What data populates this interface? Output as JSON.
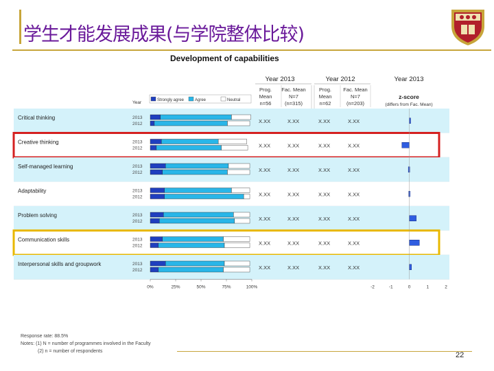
{
  "slide": {
    "title": "学生才能发展成果(与学院整体比较)",
    "page_number": "22",
    "colors": {
      "title": "#6a1a9a",
      "accent_rule": "#c7a53a",
      "red_box": "#d42020",
      "yellow_box": "#e8b800"
    }
  },
  "footnotes": {
    "response_rate": "Response rate: 88.5%",
    "note1": "Notes: (1) N = number of programmes involved in the Faculty",
    "note2": "(2) n = number of respondents"
  },
  "chart_data": {
    "type": "bar",
    "title": "Development of capabilities",
    "legend": [
      "Strongly agree",
      "Agree",
      "Neutral"
    ],
    "legend_placement": "top",
    "year_header": "Year",
    "columns": {
      "group_2013_left": "Year 2013",
      "group_2012": "Year 2012",
      "group_2013_right": "Year 2013",
      "prog_mean_2013": [
        "Prog.",
        "Mean",
        "n=56"
      ],
      "fac_mean_2013": [
        "Fac. Mean",
        "N=7",
        "(n=315)"
      ],
      "prog_mean_2012": [
        "Prog.",
        "Mean",
        "n=62"
      ],
      "fac_mean_2012": [
        "Fac. Mean",
        "N=7",
        "(n=203)"
      ],
      "zscore": [
        "z-score",
        "(differs from Fac. Mean)"
      ]
    },
    "xlim": [
      0,
      100
    ],
    "x_ticks": [
      "0%",
      "25%",
      "50%",
      "75%",
      "100%"
    ],
    "z_lim": [
      -2,
      2
    ],
    "z_ticks": [
      "-2",
      "-1",
      "0",
      "1",
      "2"
    ],
    "rows": [
      {
        "label": "Critical thinking",
        "years": [
          "2013",
          "2012"
        ],
        "strongly_agree": [
          10,
          4
        ],
        "agree": [
          70,
          72
        ],
        "neutral": [
          19,
          22
        ],
        "means": [
          "X.XX",
          "X.XX",
          "X.XX",
          "X.XX"
        ],
        "zscore": 0.05,
        "highlight": ""
      },
      {
        "label": "Creative thinking",
        "years": [
          "2013",
          "2012"
        ],
        "strongly_agree": [
          11,
          6
        ],
        "agree": [
          56,
          64
        ],
        "neutral": [
          28,
          26
        ],
        "means": [
          "X.XX",
          "X.XX",
          "X.XX",
          "X.XX"
        ],
        "zscore": -0.4,
        "highlight": "red"
      },
      {
        "label": "Self-managed learning",
        "years": [
          "2013",
          "2012"
        ],
        "strongly_agree": [
          15,
          12
        ],
        "agree": [
          62,
          64
        ],
        "neutral": [
          21,
          22
        ],
        "means": [
          "X.XX",
          "X.XX",
          "X.XX",
          "X.XX"
        ],
        "zscore": -0.05,
        "highlight": ""
      },
      {
        "label": "Adaptability",
        "years": [
          "2013",
          "2012"
        ],
        "strongly_agree": [
          14,
          14
        ],
        "agree": [
          66,
          78
        ],
        "neutral": [
          18,
          6
        ],
        "means": [
          "X.XX",
          "X.XX",
          "X.XX",
          "X.XX"
        ],
        "zscore": -0.03,
        "highlight": ""
      },
      {
        "label": "Problem solving",
        "years": [
          "2013",
          "2012"
        ],
        "strongly_agree": [
          13,
          9
        ],
        "agree": [
          69,
          74
        ],
        "neutral": [
          16,
          15
        ],
        "means": [
          "X.XX",
          "X.XX",
          "X.XX",
          "X.XX"
        ],
        "zscore": 0.38,
        "highlight": ""
      },
      {
        "label": "Communication skills",
        "years": [
          "2013",
          "2012"
        ],
        "strongly_agree": [
          12,
          8
        ],
        "agree": [
          60,
          65
        ],
        "neutral": [
          26,
          25
        ],
        "means": [
          "X.XX",
          "X.XX",
          "X.XX",
          "X.XX"
        ],
        "zscore": 0.55,
        "highlight": "yellow"
      },
      {
        "label": "Interpersonal skills and groupwork",
        "years": [
          "2013",
          "2012"
        ],
        "strongly_agree": [
          15,
          8
        ],
        "agree": [
          58,
          64
        ],
        "neutral": [
          25,
          26
        ],
        "means": [
          "X.XX",
          "X.XX",
          "X.XX",
          "X.XX"
        ],
        "zscore": 0.12,
        "highlight": ""
      }
    ]
  }
}
